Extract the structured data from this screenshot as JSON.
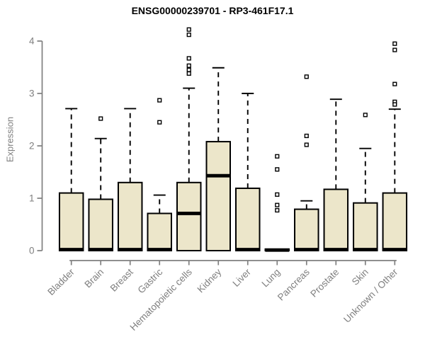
{
  "chart_data": {
    "type": "boxplot",
    "title": "ENSG00000239701 - RP3-461F17.1",
    "ylabel": "Expression",
    "ylim": [
      0,
      4
    ],
    "yticks": [
      "0",
      "1",
      "2",
      "3",
      "4"
    ],
    "grid": false,
    "legend": "none",
    "categories": [
      "Bladder",
      "Brain",
      "Breast",
      "Gastric",
      "Hematopoietic cells",
      "Kidney",
      "Liver",
      "Lung",
      "Pancreas",
      "Prostate",
      "Skin",
      "Unknown / Other"
    ],
    "series": [
      {
        "name": "Bladder",
        "q1": 0,
        "median": 0.02,
        "q3": 1.1,
        "whisker_low": 0,
        "whisker_high": 2.71,
        "outliers": []
      },
      {
        "name": "Brain",
        "q1": 0,
        "median": 0.02,
        "q3": 0.98,
        "whisker_low": 0,
        "whisker_high": 2.14,
        "outliers": [
          2.52
        ]
      },
      {
        "name": "Breast",
        "q1": 0,
        "median": 0.02,
        "q3": 1.3,
        "whisker_low": 0,
        "whisker_high": 2.71,
        "outliers": []
      },
      {
        "name": "Gastric",
        "q1": 0,
        "median": 0.02,
        "q3": 0.71,
        "whisker_low": 0,
        "whisker_high": 1.06,
        "outliers": [
          2.87,
          2.45
        ]
      },
      {
        "name": "Hematopoietic cells",
        "q1": 0,
        "median": 0.71,
        "q3": 1.3,
        "whisker_low": 0,
        "whisker_high": 3.1,
        "outliers": [
          4.22,
          4.12,
          3.67,
          3.53,
          3.45,
          3.38
        ]
      },
      {
        "name": "Kidney",
        "q1": 0,
        "median": 1.43,
        "q3": 2.08,
        "whisker_low": 0,
        "whisker_high": 3.49,
        "outliers": []
      },
      {
        "name": "Liver",
        "q1": 0,
        "median": 0.02,
        "q3": 1.19,
        "whisker_low": 0,
        "whisker_high": 3.0,
        "outliers": []
      },
      {
        "name": "Lung",
        "q1": 0,
        "median": 0.01,
        "q3": 0.03,
        "whisker_low": 0,
        "whisker_high": 0.03,
        "outliers": [
          1.8,
          1.55,
          1.07,
          0.87,
          0.77
        ]
      },
      {
        "name": "Pancreas",
        "q1": 0,
        "median": 0.02,
        "q3": 0.79,
        "whisker_low": 0,
        "whisker_high": 0.95,
        "outliers": [
          3.32,
          2.19,
          2.02
        ]
      },
      {
        "name": "Prostate",
        "q1": 0,
        "median": 0.02,
        "q3": 1.17,
        "whisker_low": 0,
        "whisker_high": 2.89,
        "outliers": []
      },
      {
        "name": "Skin",
        "q1": 0,
        "median": 0.02,
        "q3": 0.91,
        "whisker_low": 0,
        "whisker_high": 1.95,
        "outliers": [
          2.59
        ]
      },
      {
        "name": "Unknown / Other",
        "q1": 0,
        "median": 0.02,
        "q3": 1.1,
        "whisker_low": 0,
        "whisker_high": 2.7,
        "outliers": [
          3.95,
          3.83,
          3.18,
          2.84,
          2.79
        ]
      }
    ],
    "style": {
      "box_fill": "#ECE6CA",
      "box_border": "#000000",
      "median_color": "#000000",
      "whisker_color": "#000000",
      "outlier_stroke": "#000000",
      "outlier_fill": "#FFFFFF",
      "axis_color": "#7F7F7F",
      "tick_label_color": "#7F7F7F",
      "title_color": "#000000",
      "background": "#FFFFFF"
    }
  }
}
